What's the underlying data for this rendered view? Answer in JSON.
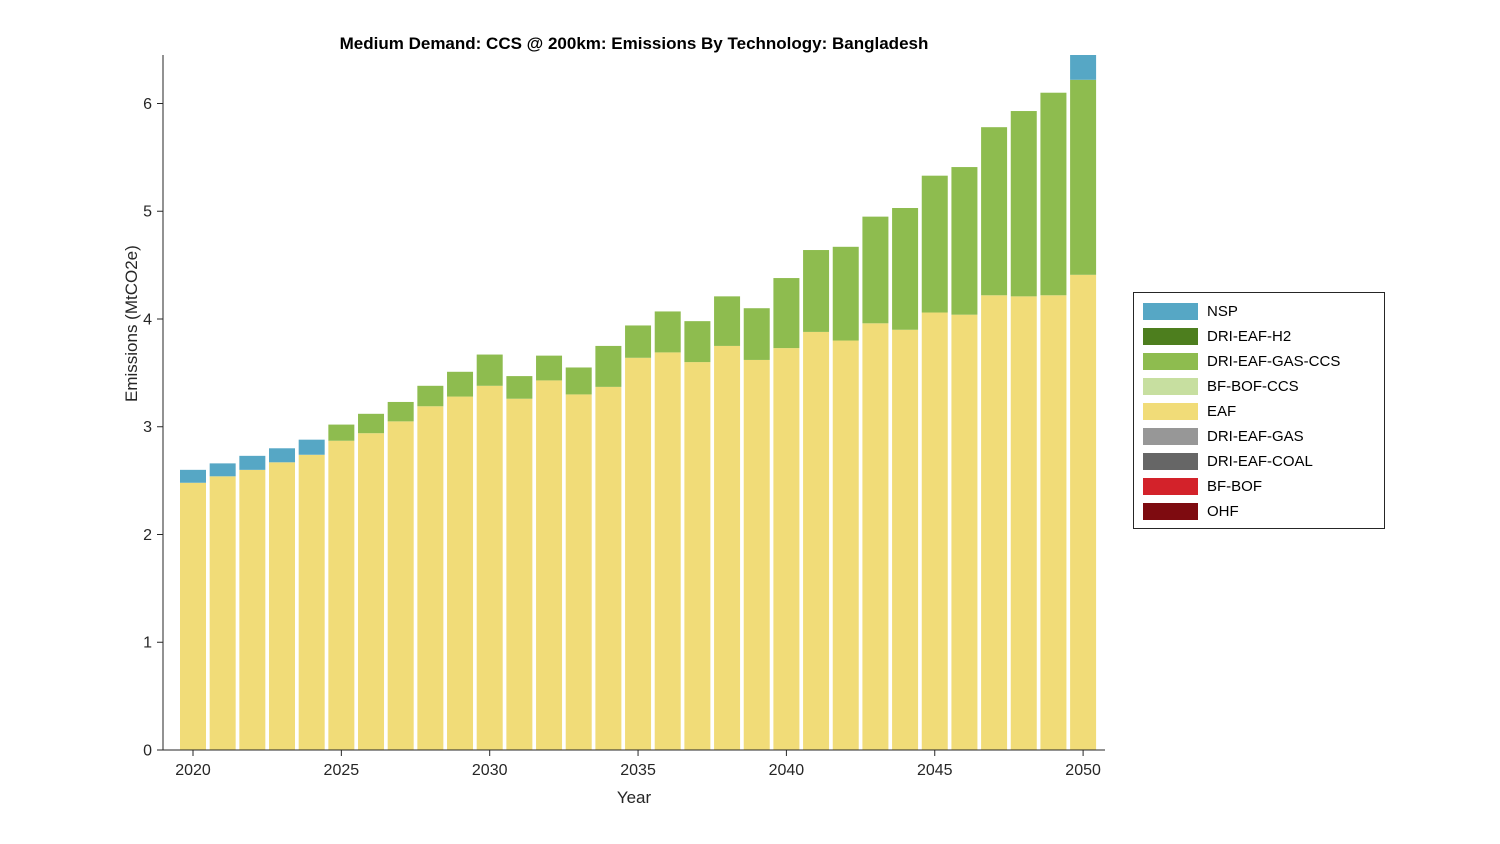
{
  "chart_data": {
    "type": "bar",
    "stacked": true,
    "title": "Medium Demand: CCS @ 200km: Emissions By Technology: Bangladesh",
    "xlabel": "Year",
    "ylabel": "Emissions (MtCO2e)",
    "ylim": [
      0,
      6.45
    ],
    "yticks": [
      0,
      1,
      2,
      3,
      4,
      5,
      6
    ],
    "xticks": [
      2020,
      2025,
      2030,
      2035,
      2040,
      2045,
      2050
    ],
    "grid": false,
    "legend_position": "right-outside",
    "years": [
      2020,
      2021,
      2022,
      2023,
      2024,
      2025,
      2026,
      2027,
      2028,
      2029,
      2030,
      2031,
      2032,
      2033,
      2034,
      2035,
      2036,
      2037,
      2038,
      2039,
      2040,
      2041,
      2042,
      2043,
      2044,
      2045,
      2046,
      2047,
      2048,
      2049,
      2050
    ],
    "stack_order_bottom_to_top": [
      "OHF",
      "BF-BOF",
      "DRI-EAF-COAL",
      "DRI-EAF-GAS",
      "EAF",
      "BF-BOF-CCS",
      "DRI-EAF-GAS-CCS",
      "DRI-EAF-H2",
      "NSP"
    ],
    "series": [
      {
        "name": "NSP",
        "color": "#56A7C5",
        "values": [
          0.12,
          0.12,
          0.13,
          0.13,
          0.14,
          0,
          0,
          0,
          0,
          0,
          0,
          0,
          0,
          0,
          0,
          0,
          0,
          0,
          0,
          0,
          0,
          0,
          0,
          0,
          0,
          0,
          0,
          0,
          0,
          0,
          0.28
        ]
      },
      {
        "name": "DRI-EAF-H2",
        "color": "#4D7E1E",
        "values": [
          0,
          0,
          0,
          0,
          0,
          0,
          0,
          0,
          0,
          0,
          0,
          0,
          0,
          0,
          0,
          0,
          0,
          0,
          0,
          0,
          0,
          0,
          0,
          0,
          0,
          0,
          0,
          0,
          0,
          0,
          0
        ]
      },
      {
        "name": "DRI-EAF-GAS-CCS",
        "color": "#8EBC4F",
        "values": [
          0,
          0,
          0,
          0,
          0,
          0.15,
          0.18,
          0.18,
          0.19,
          0.23,
          0.29,
          0.21,
          0.23,
          0.25,
          0.38,
          0.3,
          0.38,
          0.38,
          0.46,
          0.48,
          0.65,
          0.76,
          0.87,
          0.99,
          1.13,
          1.27,
          1.37,
          1.56,
          1.72,
          1.88,
          1.81
        ]
      },
      {
        "name": "BF-BOF-CCS",
        "color": "#C7DFA0",
        "values": [
          0,
          0,
          0,
          0,
          0,
          0,
          0,
          0,
          0,
          0,
          0,
          0,
          0,
          0,
          0,
          0,
          0,
          0,
          0,
          0,
          0,
          0,
          0,
          0,
          0,
          0,
          0,
          0,
          0,
          0,
          0
        ]
      },
      {
        "name": "EAF",
        "color": "#F1DC78",
        "values": [
          2.48,
          2.54,
          2.6,
          2.67,
          2.74,
          2.87,
          2.94,
          3.05,
          3.19,
          3.28,
          3.38,
          3.26,
          3.43,
          3.3,
          3.37,
          3.64,
          3.69,
          3.6,
          3.75,
          3.62,
          3.73,
          3.88,
          3.8,
          3.96,
          3.9,
          4.06,
          4.04,
          4.22,
          4.21,
          4.22,
          4.41
        ]
      },
      {
        "name": "DRI-EAF-GAS",
        "color": "#979797",
        "values": [
          0,
          0,
          0,
          0,
          0,
          0,
          0,
          0,
          0,
          0,
          0,
          0,
          0,
          0,
          0,
          0,
          0,
          0,
          0,
          0,
          0,
          0,
          0,
          0,
          0,
          0,
          0,
          0,
          0,
          0,
          0
        ]
      },
      {
        "name": "DRI-EAF-COAL",
        "color": "#666666",
        "values": [
          0,
          0,
          0,
          0,
          0,
          0,
          0,
          0,
          0,
          0,
          0,
          0,
          0,
          0,
          0,
          0,
          0,
          0,
          0,
          0,
          0,
          0,
          0,
          0,
          0,
          0,
          0,
          0,
          0,
          0,
          0
        ]
      },
      {
        "name": "BF-BOF",
        "color": "#D3222A",
        "values": [
          0,
          0,
          0,
          0,
          0,
          0,
          0,
          0,
          0,
          0,
          0,
          0,
          0,
          0,
          0,
          0,
          0,
          0,
          0,
          0,
          0,
          0,
          0,
          0,
          0,
          0,
          0,
          0,
          0,
          0,
          0
        ]
      },
      {
        "name": "OHF",
        "color": "#7E0B10",
        "values": [
          0,
          0,
          0,
          0,
          0,
          0,
          0,
          0,
          0,
          0,
          0,
          0,
          0,
          0,
          0,
          0,
          0,
          0,
          0,
          0,
          0,
          0,
          0,
          0,
          0,
          0,
          0,
          0,
          0,
          0,
          0
        ]
      }
    ],
    "axis_color": "#262626",
    "tick_label_color": "#262626"
  }
}
